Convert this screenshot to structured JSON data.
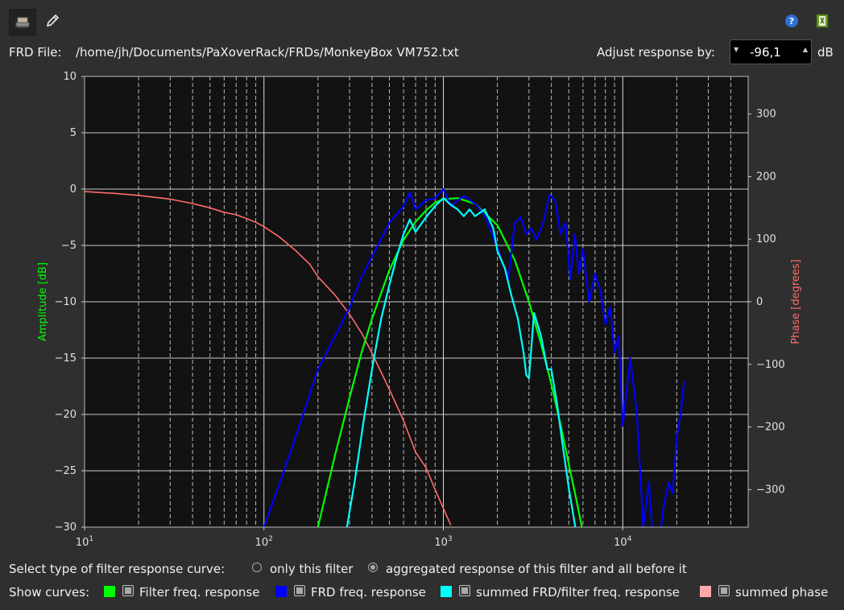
{
  "toolbar": {
    "tool_icon": "stamp-icon",
    "edit_icon": "pencil-icon",
    "help_icon": "help-icon",
    "save_icon": "export-icon"
  },
  "frd": {
    "label": "FRD File:",
    "path": "/home/jh/Documents/PaXoverRack/FRDs/MonkeyBox VM752.txt",
    "adjust_label": "Adjust response by:",
    "adjust_value": "-96,1",
    "adjust_unit": "dB"
  },
  "chart_data": {
    "type": "line",
    "xscale": "log",
    "xlim": [
      10,
      50000
    ],
    "ylim": [
      -30,
      10
    ],
    "y2lim": [
      -360,
      360
    ],
    "ylabel": "Amplitude [dB]",
    "y2label": "Phase [degrees]",
    "grid": true,
    "x_ticks": [
      "10^1",
      "10^2",
      "10^3",
      "10^4"
    ],
    "y_ticks": [
      "10",
      "5",
      "0",
      "−5",
      "−10",
      "−15",
      "−20",
      "−25",
      "−30"
    ],
    "y2_ticks": [
      "300",
      "200",
      "100",
      "0",
      "−100",
      "−200",
      "−300"
    ],
    "colors": {
      "filter": "#00ff00",
      "frd": "#0000ff",
      "summed": "#00ffff",
      "phase": "#ff6b6b",
      "ylabel": "#00ff00",
      "y2label": "#ff6b6b"
    },
    "series": [
      {
        "name": "Filter freq. response",
        "axis": "amplitude",
        "color": "#00ff00",
        "x": [
          200,
          250,
          300,
          350,
          400,
          500,
          600,
          700,
          800,
          900,
          1000,
          1200,
          1500,
          2000,
          2500,
          3000,
          3500,
          4000,
          4500,
          5000,
          5500,
          6000
        ],
        "y": [
          -30,
          -23.5,
          -18.5,
          -14.5,
          -11.5,
          -7.2,
          -4.5,
          -2.9,
          -1.9,
          -1.2,
          -0.9,
          -0.8,
          -1.3,
          -3.2,
          -6.3,
          -10,
          -13.7,
          -17.3,
          -20.9,
          -24.4,
          -27.5,
          -30.5
        ]
      },
      {
        "name": "FRD freq. response",
        "axis": "amplitude",
        "color": "#0000ff",
        "x": [
          100,
          120,
          150,
          200,
          250,
          300,
          350,
          400,
          500,
          600,
          650,
          700,
          800,
          900,
          1000,
          1100,
          1300,
          1500,
          1700,
          2000,
          2300,
          2500,
          2700,
          2900,
          3100,
          3300,
          3600,
          3900,
          4200,
          4500,
          4800,
          5100,
          5400,
          5700,
          6000,
          6500,
          7000,
          7500,
          8000,
          8500,
          9000,
          9500,
          10000,
          11000,
          12000,
          13000,
          14000,
          15000,
          16000,
          17000,
          18000,
          19000,
          20000,
          21000,
          22000
        ],
        "y": [
          -30,
          -26.5,
          -22,
          -16,
          -13,
          -10.5,
          -7.8,
          -6,
          -3,
          -1.5,
          -0.3,
          -1.8,
          -1,
          -0.8,
          0,
          -1.5,
          -0.6,
          -1.3,
          -2.3,
          -5.2,
          -8,
          -3,
          -2.5,
          -4,
          -3.5,
          -4.5,
          -3,
          -0.5,
          -1,
          -4,
          -3,
          -8,
          -4,
          -7.5,
          -5.3,
          -10,
          -7.5,
          -9,
          -12,
          -10.5,
          -14.5,
          -13,
          -21,
          -15,
          -20,
          -30,
          -26,
          -33,
          -31,
          -28,
          -26,
          -27,
          -22,
          -20,
          -17
        ]
      },
      {
        "name": "summed FRD/filter freq. response",
        "axis": "amplitude",
        "color": "#00ffff",
        "x": [
          290,
          320,
          360,
          400,
          450,
          500,
          550,
          600,
          650,
          700,
          800,
          900,
          1000,
          1100,
          1200,
          1300,
          1400,
          1500,
          1700,
          1900,
          2000,
          2200,
          2400,
          2600,
          2800,
          2900,
          3000,
          3200,
          3500,
          3800,
          4000,
          4300,
          4600,
          5000,
          5500
        ],
        "y": [
          -30,
          -26,
          -20.5,
          -16,
          -11.5,
          -8.5,
          -6,
          -4,
          -2.7,
          -3.8,
          -2.5,
          -1.5,
          -0.8,
          -1.4,
          -1.8,
          -2.4,
          -1.8,
          -2.4,
          -1.8,
          -3.5,
          -5.5,
          -7,
          -9.5,
          -11.5,
          -14.5,
          -16.5,
          -16.8,
          -11,
          -13,
          -16,
          -16,
          -19,
          -22.5,
          -26.5,
          -30.5
        ]
      },
      {
        "name": "summed phase",
        "axis": "phase",
        "color": "#ff6b6b",
        "x": [
          10,
          15,
          20,
          30,
          40,
          50,
          60,
          70,
          80,
          90,
          100,
          120,
          150,
          180,
          200,
          250,
          300,
          350,
          400,
          500,
          600,
          700,
          800,
          900,
          1000,
          1100
        ],
        "y": [
          176,
          173,
          170,
          164,
          157,
          150,
          143,
          139,
          133,
          127,
          120,
          105,
          82,
          60,
          40,
          10,
          -20,
          -50,
          -82,
          -140,
          -190,
          -240,
          -265,
          -300,
          -330,
          -357
        ]
      }
    ]
  },
  "controls": {
    "select_label": "Select type of filter response curve:",
    "option_only": "only this filter",
    "option_aggregated": "aggregated response of this filter and all before it",
    "show_label": "Show curves:",
    "curves": [
      {
        "label": "Filter freq. response",
        "color": "#00ff00",
        "checked": true
      },
      {
        "label": "FRD freq. response",
        "color": "#0000ff",
        "checked": true
      },
      {
        "label": "summed FRD/filter freq. response",
        "color": "#00ffff",
        "checked": true
      },
      {
        "label": "summed phase",
        "color": "#ffa8a8",
        "checked": true
      }
    ]
  }
}
